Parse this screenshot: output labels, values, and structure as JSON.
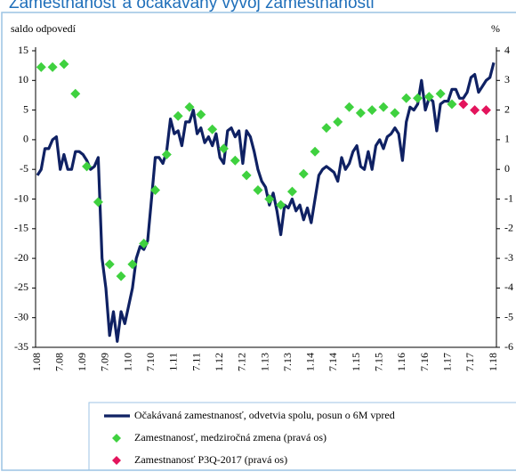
{
  "chart_data": {
    "type": "line",
    "title": "Zamestnanosť a očakávaný vývoj zamestnanosti",
    "ylabel": "saldo odpovedí",
    "y2label": "%",
    "categories": [
      "1.08",
      null,
      null,
      null,
      null,
      null,
      "7.08",
      null,
      null,
      null,
      null,
      null,
      "1.09",
      null,
      null,
      null,
      null,
      null,
      "7.09",
      null,
      null,
      null,
      null,
      null,
      "1.10",
      null,
      null,
      null,
      null,
      null,
      "7.10",
      null,
      null,
      null,
      null,
      null,
      "1.11",
      null,
      null,
      null,
      null,
      null,
      "7.11",
      null,
      null,
      null,
      null,
      null,
      "1.12",
      null,
      null,
      null,
      null,
      null,
      "7.12",
      null,
      null,
      null,
      null,
      null,
      "1.13",
      null,
      null,
      null,
      null,
      null,
      "7.13",
      null,
      null,
      null,
      null,
      null,
      "1.14",
      null,
      null,
      null,
      null,
      null,
      "7.14",
      null,
      null,
      null,
      null,
      null,
      "1.15",
      null,
      null,
      null,
      null,
      null,
      "7.15",
      null,
      null,
      null,
      null,
      null,
      "1.16",
      null,
      null,
      null,
      null,
      null,
      "7.16",
      null,
      null,
      null,
      null,
      null,
      "1.17",
      null,
      null,
      null,
      null,
      null,
      "7.17",
      null,
      null,
      null,
      null,
      null,
      "1.18"
    ],
    "series": [
      {
        "name": "Očakávaná zamestnanosť, odvetvia spolu, posun o 6M vpred",
        "color": "#0f2163",
        "kind": "line",
        "values": [
          -6,
          -5,
          -1.5,
          -1.5,
          0,
          0.5,
          -5,
          -2.5,
          -5,
          -5,
          -2,
          -2,
          -2.5,
          -3.5,
          -5,
          -4.5,
          -3,
          -20,
          -25,
          -33,
          -29,
          -34,
          -29,
          -31,
          -28,
          -25,
          -20,
          -18,
          -18.5,
          -17,
          -10,
          -3,
          -3,
          -4,
          -2,
          3.5,
          1,
          1.5,
          -1,
          3,
          3,
          5,
          1,
          2,
          -0.5,
          0.5,
          -1,
          1,
          -3,
          -4,
          1.5,
          2,
          0.5,
          1.5,
          -4,
          1.5,
          0.5,
          -2,
          -5,
          -7,
          -8,
          -11,
          -9,
          -12,
          -16,
          -11,
          -11.5,
          -10,
          -12,
          -11,
          -13.5,
          -11.5,
          -14,
          -10,
          -6,
          -5,
          -4.5,
          -5,
          -5.5,
          -7,
          -3,
          -5,
          -4,
          -2,
          -1,
          -4.5,
          -5,
          -2,
          -5,
          -1,
          0,
          -1.5,
          0.5,
          1,
          2,
          1,
          -3.5,
          3,
          5.5,
          5,
          6,
          10,
          5,
          7,
          6.5,
          1.5,
          6,
          6.5,
          6.5,
          8.5,
          8.5,
          7,
          7,
          8,
          10.5,
          11,
          8,
          9,
          10,
          10.5,
          13
        ]
      },
      {
        "name": "Zamestnanosť, medziročná zmena (pravá os)",
        "color": "#3fd13f",
        "kind": "diamond",
        "axis": "y2",
        "values": [
          null,
          3.45,
          null,
          null,
          3.45,
          null,
          null,
          3.55,
          null,
          null,
          2.55,
          null,
          null,
          0.1,
          null,
          null,
          -1.1,
          null,
          null,
          -3.2,
          null,
          null,
          -3.6,
          null,
          null,
          -3.2,
          null,
          null,
          -2.5,
          null,
          null,
          -0.7,
          null,
          null,
          0.5,
          null,
          null,
          1.8,
          null,
          null,
          2.1,
          null,
          null,
          1.85,
          null,
          null,
          1.35,
          null,
          null,
          0.7,
          null,
          null,
          0.3,
          null,
          null,
          -0.2,
          null,
          null,
          -0.7,
          null,
          null,
          -1,
          null,
          null,
          -1.2,
          null,
          null,
          -0.75,
          null,
          null,
          -0.15,
          null,
          null,
          0.6,
          null,
          null,
          1.4,
          null,
          null,
          1.6,
          null,
          null,
          2.1,
          null,
          null,
          1.9,
          null,
          null,
          2,
          null,
          null,
          2.1,
          null,
          null,
          1.9,
          null,
          null,
          2.4,
          null,
          null,
          2.4,
          null,
          null,
          2.45,
          null,
          null,
          2.55,
          null,
          null,
          2.2,
          null,
          null,
          null,
          null,
          null,
          null,
          null,
          null,
          null,
          null,
          null
        ]
      },
      {
        "name": "Zamestnanosť P3Q-2017 (pravá os)",
        "color": "#e3145c",
        "kind": "diamond",
        "axis": "y2",
        "values": [
          null,
          null,
          null,
          null,
          null,
          null,
          null,
          null,
          null,
          null,
          null,
          null,
          null,
          null,
          null,
          null,
          null,
          null,
          null,
          null,
          null,
          null,
          null,
          null,
          null,
          null,
          null,
          null,
          null,
          null,
          null,
          null,
          null,
          null,
          null,
          null,
          null,
          null,
          null,
          null,
          null,
          null,
          null,
          null,
          null,
          null,
          null,
          null,
          null,
          null,
          null,
          null,
          null,
          null,
          null,
          null,
          null,
          null,
          null,
          null,
          null,
          null,
          null,
          null,
          null,
          null,
          null,
          null,
          null,
          null,
          null,
          null,
          null,
          null,
          null,
          null,
          null,
          null,
          null,
          null,
          null,
          null,
          null,
          null,
          null,
          null,
          null,
          null,
          null,
          null,
          null,
          null,
          null,
          null,
          null,
          null,
          null,
          null,
          null,
          null,
          null,
          null,
          null,
          null,
          null,
          null,
          null,
          null,
          null,
          null,
          null,
          null,
          2.2,
          null,
          null,
          2,
          null,
          null,
          2,
          null,
          null
        ]
      }
    ],
    "ylim": [
      -35,
      15
    ],
    "yticks": [
      -35,
      -30,
      -25,
      -20,
      -15,
      -10,
      -5,
      0,
      5,
      10,
      15
    ],
    "y2lim": [
      -6,
      4
    ],
    "y2ticks": [
      -6,
      -5,
      -4,
      -3,
      -2,
      -1,
      0,
      1,
      2,
      3,
      4
    ],
    "legend": "bottom"
  }
}
